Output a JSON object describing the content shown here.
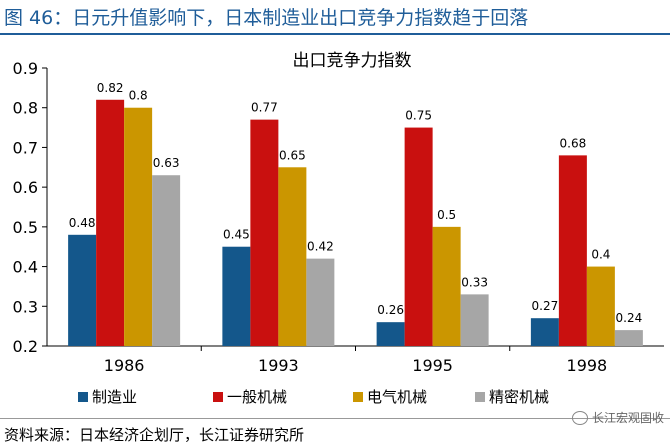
{
  "figure": {
    "title": "图 46：日元升值影响下，日本制造业出口竞争力指数趋于回落",
    "source": "资料来源：日本经济企划厅，长江证券研究所",
    "watermark": "长江宏观固收",
    "watermark_icon": "wechat-icon"
  },
  "colors": {
    "title": "#1f5d99",
    "series": [
      "#14578b",
      "#c9100f",
      "#cb9600",
      "#a6a6a6"
    ]
  },
  "chart_data": {
    "type": "bar",
    "title": "出口竞争力指数",
    "categories": [
      "1986",
      "1993",
      "1995",
      "1998"
    ],
    "series": [
      {
        "name": "制造业",
        "values": [
          0.48,
          0.45,
          0.26,
          0.27
        ]
      },
      {
        "name": "一般机械",
        "values": [
          0.82,
          0.77,
          0.75,
          0.68
        ]
      },
      {
        "name": "电气机械",
        "values": [
          0.8,
          0.65,
          0.5,
          0.4
        ]
      },
      {
        "name": "精密机械",
        "values": [
          0.63,
          0.42,
          0.33,
          0.24
        ]
      }
    ],
    "value_labels": [
      [
        "0.48",
        "0.45",
        "0.26",
        "0.27"
      ],
      [
        "0.82",
        "0.77",
        "0.75",
        "0.68"
      ],
      [
        "0.8",
        "0.65",
        "0.5",
        "0.4"
      ],
      [
        "0.63",
        "0.42",
        "0.33",
        "0.24"
      ]
    ],
    "yticks": [
      "0.2",
      "0.3",
      "0.4",
      "0.5",
      "0.6",
      "0.7",
      "0.8",
      "0.9"
    ],
    "ylim": [
      0.2,
      0.9
    ],
    "grid": false,
    "legend": "bottom"
  }
}
